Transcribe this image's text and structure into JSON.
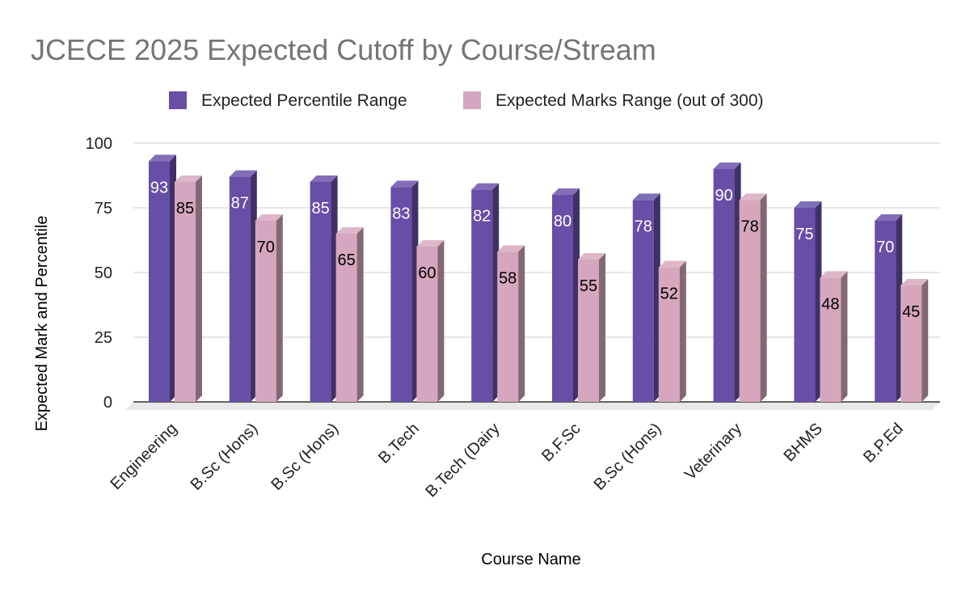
{
  "chart_data": {
    "type": "bar",
    "title": "JCECE 2025 Expected Cutoff by Course/Stream",
    "xlabel": "Course Name",
    "ylabel": "Expected Mark and Percentile",
    "ylim": [
      0,
      100
    ],
    "yticks": [
      "0",
      "25",
      "50",
      "75",
      "100"
    ],
    "grid": true,
    "legend_position": "top",
    "categories": [
      "Engineering",
      "B.Sc (Hons)",
      "B.Sc (Hons)",
      "B.Tech",
      "B.Tech (Dairy",
      "B.F.Sc",
      "B.Sc (Hons)",
      "Veterinary",
      "BHMS",
      "B.P.Ed"
    ],
    "series": [
      {
        "name": "Expected Percentile Range",
        "color": "#674ea7",
        "values": [
          93,
          87,
          85,
          83,
          82,
          80,
          78,
          90,
          75,
          70
        ]
      },
      {
        "name": "Expected Marks Range (out of 300)",
        "color": "#d5a6bd",
        "values": [
          85,
          70,
          65,
          60,
          58,
          55,
          52,
          78,
          48,
          45
        ]
      }
    ]
  }
}
